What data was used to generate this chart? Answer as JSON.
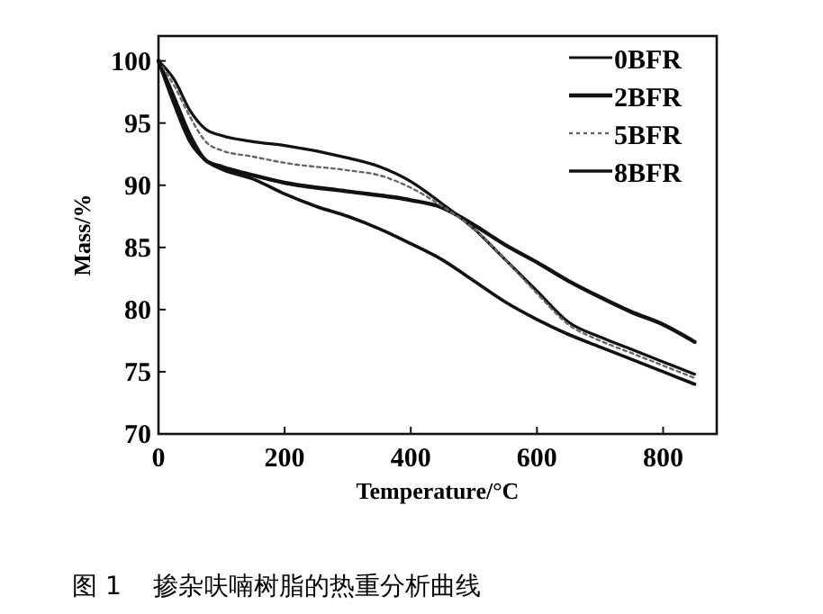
{
  "chart_data": {
    "type": "line",
    "xlabel": "Temperature/°C",
    "ylabel": "Mass/%",
    "xlim": [
      0,
      885
    ],
    "ylim": [
      70,
      102
    ],
    "xticks": [
      0,
      200,
      400,
      600,
      800
    ],
    "yticks": [
      70,
      75,
      80,
      85,
      90,
      95,
      100
    ],
    "legend": "top right",
    "grid": false,
    "annotations": [
      "图 1    掺杂呋喃树脂的热重分析曲线"
    ],
    "series": [
      {
        "name": "0BFR",
        "color": "#111111",
        "line_style": "solid",
        "x": [
          0,
          25,
          50,
          75,
          100,
          150,
          200,
          300,
          350,
          400,
          450,
          500,
          550,
          600,
          650,
          700,
          750,
          800,
          850
        ],
        "values": [
          100,
          98.5,
          96,
          94.5,
          94,
          93.5,
          93.2,
          92.2,
          91.5,
          90.3,
          88.5,
          86.5,
          84,
          81.5,
          79,
          77.8,
          76.8,
          75.8,
          74.8
        ]
      },
      {
        "name": "2BFR",
        "color": "#111111",
        "line_style": "solid",
        "x": [
          0,
          25,
          50,
          75,
          100,
          150,
          200,
          300,
          400,
          450,
          500,
          550,
          600,
          650,
          700,
          750,
          800,
          850
        ],
        "values": [
          100,
          97,
          94,
          92,
          91.5,
          90.8,
          90.2,
          89.5,
          88.8,
          88.2,
          86.8,
          85.2,
          83.8,
          82.3,
          81,
          79.8,
          78.8,
          77.4
        ]
      },
      {
        "name": "5BFR",
        "color": "#666666",
        "line_style": "dotted",
        "x": [
          0,
          25,
          50,
          75,
          100,
          150,
          200,
          300,
          350,
          400,
          450,
          500,
          550,
          600,
          650,
          700,
          750,
          800,
          850
        ],
        "values": [
          100,
          98,
          95.5,
          93.5,
          92.8,
          92.3,
          91.8,
          91.2,
          90.8,
          89.8,
          88.3,
          86.5,
          84,
          81.3,
          78.8,
          77.5,
          76.5,
          75.5,
          74.5
        ]
      },
      {
        "name": "8BFR",
        "color": "#111111",
        "line_style": "solid",
        "x": [
          0,
          25,
          50,
          75,
          100,
          150,
          200,
          250,
          300,
          350,
          400,
          450,
          500,
          550,
          600,
          650,
          700,
          750,
          800,
          850
        ],
        "values": [
          100,
          96.5,
          93.5,
          92,
          91.3,
          90.5,
          89.3,
          88.3,
          87.5,
          86.5,
          85.3,
          84,
          82.3,
          80.6,
          79.2,
          78,
          77,
          76,
          75,
          74
        ]
      }
    ]
  }
}
